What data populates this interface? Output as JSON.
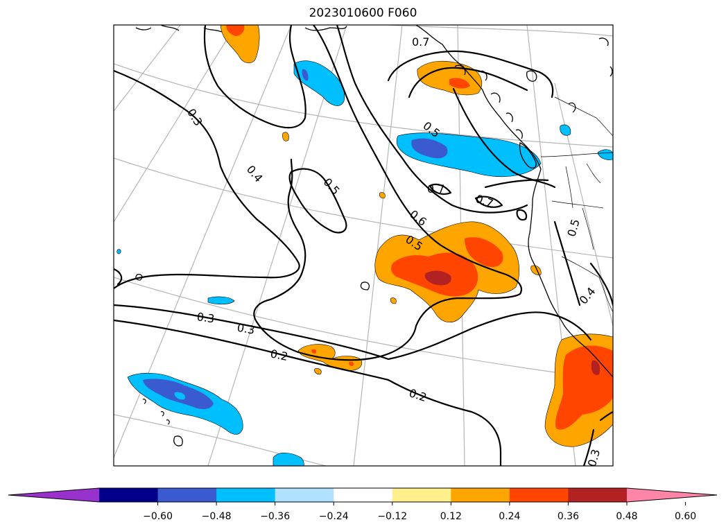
{
  "title": "2023010600 F060",
  "colors": {
    "deep_blue": "#3a5bd0",
    "mid_blue": "#00bfff",
    "orange": "#ffa500",
    "red_orange": "#ff4500",
    "dark_red": "#b22222",
    "contour": "#000000",
    "grid": "#b5b5b5"
  },
  "contour_labels": [
    "0.7",
    "0.3",
    "0.4",
    "0.5",
    "0.5",
    "0.6",
    "0.5",
    "0.7",
    "0.7",
    "0.5",
    "0.4",
    "0.3",
    "0.3",
    "0.2",
    "0.2",
    "0.3"
  ],
  "colorbar": {
    "segment_colors": [
      "#9932cc",
      "#00008b",
      "#3a5bd0",
      "#00bfff",
      "#b0e2ff",
      "#ffffff",
      "#fff08c",
      "#ffa500",
      "#ff4500",
      "#b22222",
      "#ff85a8"
    ],
    "tick_labels": [
      "−0.60",
      "−0.48",
      "−0.36",
      "−0.24",
      "−0.12",
      "0.12",
      "0.24",
      "0.36",
      "0.48",
      "0.60"
    ]
  }
}
